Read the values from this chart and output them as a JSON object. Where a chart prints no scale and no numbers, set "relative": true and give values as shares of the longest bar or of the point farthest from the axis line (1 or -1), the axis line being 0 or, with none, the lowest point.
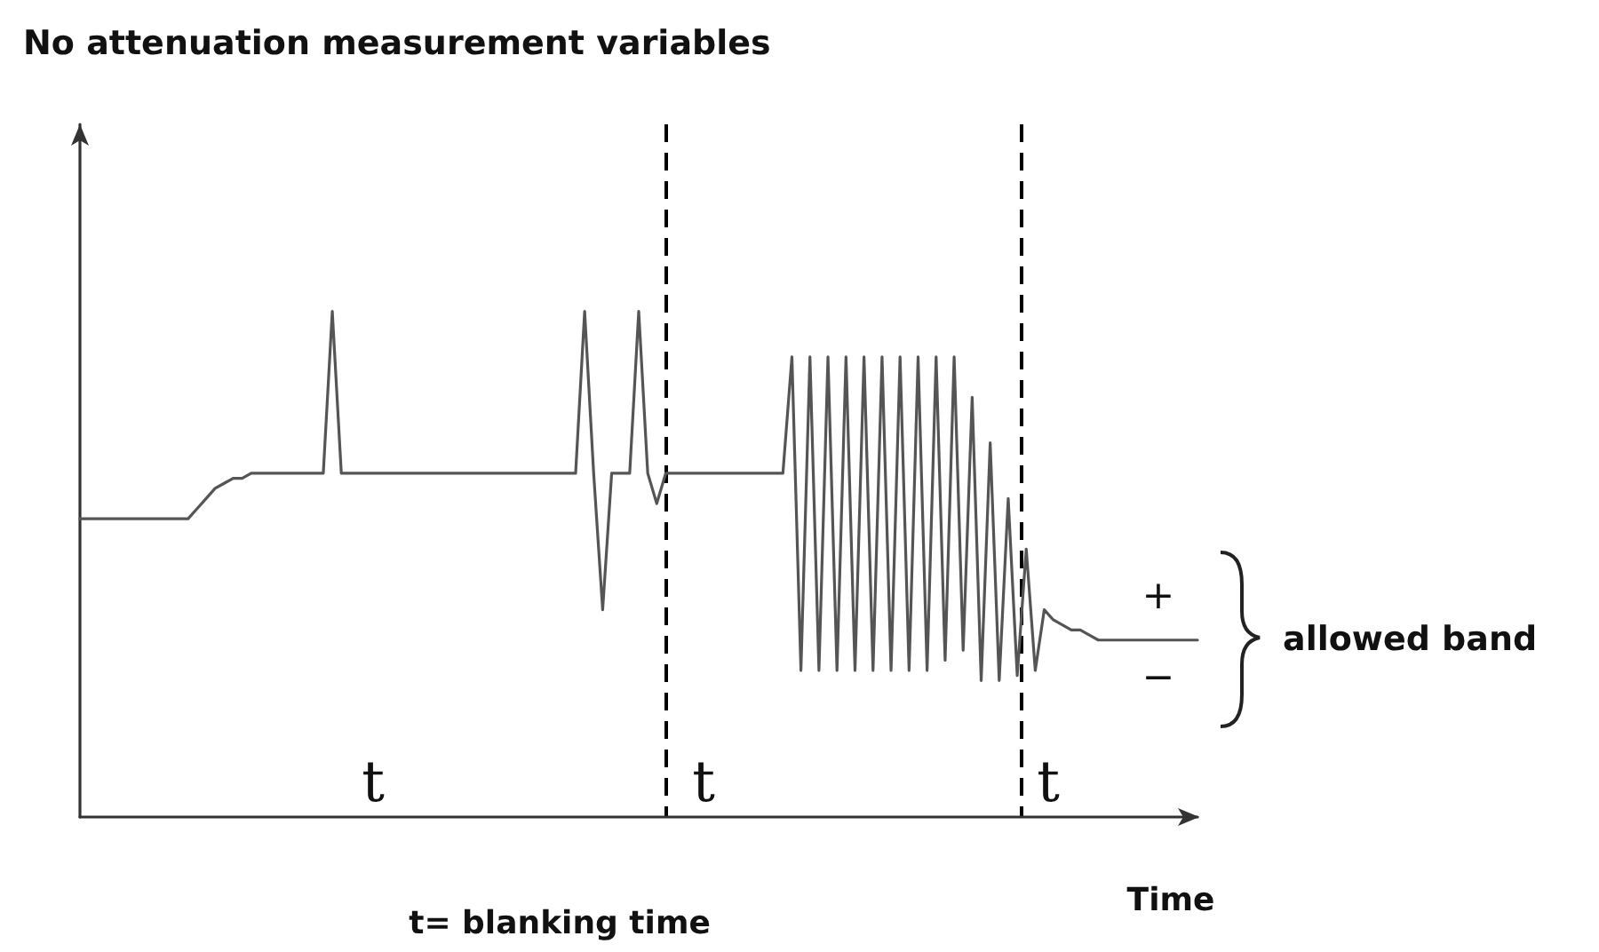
{
  "chart_data": {
    "type": "line",
    "title": "No attenuation measurement variables",
    "xlabel": "Time",
    "relative": true,
    "marker": "none",
    "line_style": "solid",
    "categories": [
      null,
      null,
      null,
      null,
      null,
      null,
      null,
      null,
      null,
      null,
      null,
      null,
      null,
      null,
      null,
      null,
      null,
      null,
      null,
      null,
      null,
      null,
      null,
      null,
      null,
      null,
      null,
      null,
      null,
      null,
      null,
      null,
      null,
      null,
      null,
      null,
      null,
      null,
      null,
      null,
      null,
      null,
      null,
      null,
      null,
      null,
      null,
      null,
      null,
      null,
      null,
      null,
      null,
      null,
      null,
      null,
      null,
      null,
      null,
      null,
      null,
      null,
      null,
      null,
      null,
      null,
      null,
      null,
      null,
      null,
      null,
      null,
      null,
      null,
      null,
      null,
      null,
      null,
      null,
      null,
      null,
      null,
      null,
      null,
      null,
      null,
      null,
      null,
      null,
      null,
      null,
      null,
      null,
      null,
      null,
      null,
      null,
      null,
      null,
      null,
      null,
      null,
      null,
      null,
      null,
      null,
      null,
      null,
      null,
      null,
      null,
      null,
      null,
      null,
      null,
      null,
      null,
      null,
      null,
      null,
      null,
      null,
      null,
      null,
      null
    ],
    "series": [
      {
        "color": "#555555",
        "values": [
          0.59,
          0.59,
          0.59,
          0.59,
          0.59,
          0.59,
          0.59,
          0.59,
          0.59,
          0.59,
          0.59,
          0.59,
          0.59,
          0.61,
          0.63,
          0.65,
          0.66,
          0.67,
          0.67,
          0.68,
          0.68,
          0.68,
          0.68,
          0.68,
          0.68,
          0.68,
          0.68,
          0.68,
          1.0,
          0.68,
          0.68,
          0.68,
          0.68,
          0.68,
          0.68,
          0.68,
          0.68,
          0.68,
          0.68,
          0.68,
          0.68,
          0.68,
          0.68,
          0.68,
          0.68,
          0.68,
          0.68,
          0.68,
          0.68,
          0.68,
          0.68,
          0.68,
          0.68,
          0.68,
          0.68,
          0.68,
          1.0,
          0.68,
          0.41,
          0.68,
          0.68,
          0.68,
          1.0,
          0.68,
          0.62,
          0.68,
          0.68,
          0.68,
          0.68,
          0.68,
          0.68,
          0.68,
          0.68,
          0.68,
          0.68,
          0.68,
          0.68,
          0.68,
          0.68,
          0.91,
          0.29,
          0.91,
          0.29,
          0.91,
          0.29,
          0.91,
          0.29,
          0.91,
          0.29,
          0.91,
          0.29,
          0.91,
          0.29,
          0.91,
          0.29,
          0.91,
          0.31,
          0.91,
          0.33,
          0.83,
          0.27,
          0.74,
          0.27,
          0.63,
          0.28,
          0.53,
          0.29,
          0.41,
          0.39,
          0.38,
          0.37,
          0.37,
          0.36,
          0.35,
          0.35,
          0.35,
          0.35,
          0.35,
          0.35,
          0.35,
          0.35,
          0.35,
          0.35,
          0.35,
          0.35
        ]
      }
    ],
    "annotations": [
      "t",
      "t",
      "t",
      "+",
      "−",
      "allowed band",
      "t= blanking time"
    ]
  }
}
